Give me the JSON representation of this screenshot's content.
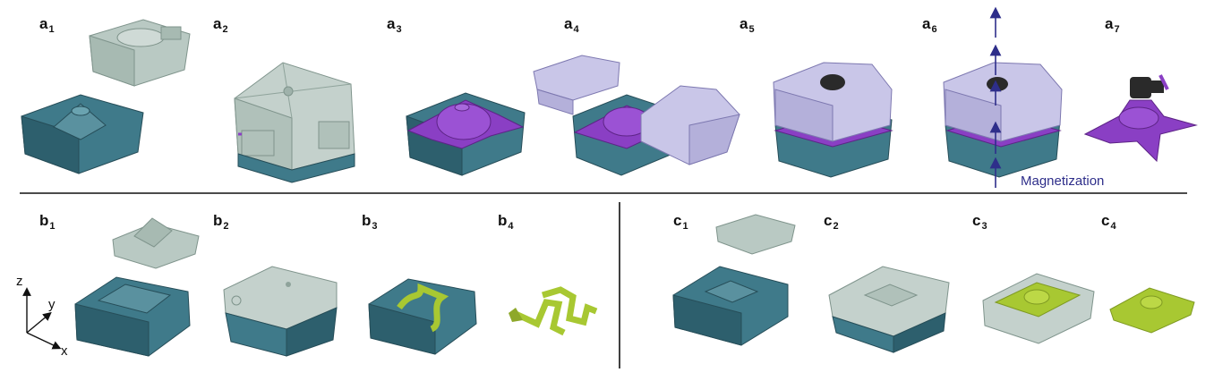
{
  "labels": {
    "a1": {
      "letter": "a",
      "sub": "1"
    },
    "a2": {
      "letter": "a",
      "sub": "2"
    },
    "a3": {
      "letter": "a",
      "sub": "3"
    },
    "a4": {
      "letter": "a",
      "sub": "4"
    },
    "a5": {
      "letter": "a",
      "sub": "5"
    },
    "a6": {
      "letter": "a",
      "sub": "6"
    },
    "a7": {
      "letter": "a",
      "sub": "7"
    },
    "b1": {
      "letter": "b",
      "sub": "1"
    },
    "b2": {
      "letter": "b",
      "sub": "2"
    },
    "b3": {
      "letter": "b",
      "sub": "3"
    },
    "b4": {
      "letter": "b",
      "sub": "4"
    },
    "c1": {
      "letter": "c",
      "sub": "1"
    },
    "c2": {
      "letter": "c",
      "sub": "2"
    },
    "c3": {
      "letter": "c",
      "sub": "3"
    },
    "c4": {
      "letter": "c",
      "sub": "4"
    }
  },
  "magnetization_label": "Magnetization",
  "axes": {
    "z": "z",
    "y": "y",
    "x": "x"
  },
  "colors": {
    "mold_teal": "#3f7a8a",
    "mold_teal_dark": "#2d5f6d",
    "translucent_grey": "#b9c9c3",
    "purple": "#8a3fc4",
    "lavender": "#c9c6e8",
    "lime": "#a8c832",
    "black_part": "#2a2a2a",
    "arrow_navy": "#2e2e8a"
  }
}
